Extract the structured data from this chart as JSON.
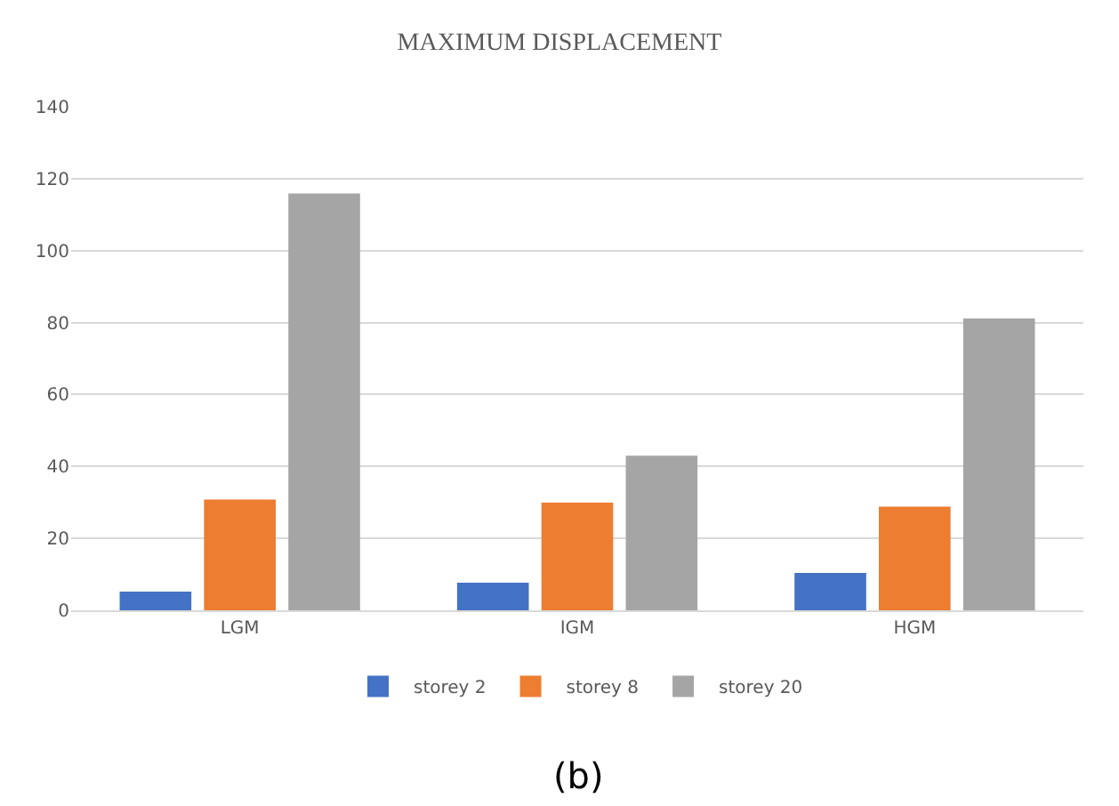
{
  "chart_data": {
    "type": "bar",
    "title": "MAXIMUM DISPLACEMENT",
    "categories": [
      "LGM",
      "IGM",
      "HGM"
    ],
    "series": [
      {
        "name": "storey 2",
        "color": "#4472c4",
        "values": [
          5.2,
          7.7,
          10.4
        ]
      },
      {
        "name": "storey 8",
        "color": "#ed7d31",
        "values": [
          30.8,
          29.9,
          28.8
        ]
      },
      {
        "name": "storey 20",
        "color": "#a5a5a5",
        "values": [
          115.9,
          43.0,
          81.1
        ]
      }
    ],
    "ylim": [
      0,
      140
    ],
    "yticks": [
      0,
      20,
      40,
      60,
      80,
      100,
      120,
      140
    ],
    "grid": "y",
    "legend": "bottom",
    "annotations": [
      "(b)"
    ]
  }
}
